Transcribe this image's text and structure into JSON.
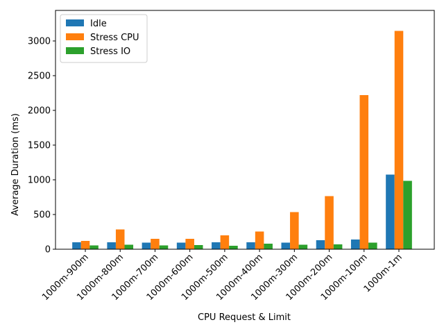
{
  "chart_data": {
    "type": "bar",
    "title": "",
    "xlabel": "CPU Request & Limit",
    "ylabel": "Average Duration (ms)",
    "ylim": [
      0,
      3440
    ],
    "yticks": [
      0,
      500,
      1000,
      1500,
      2000,
      2500,
      3000
    ],
    "grid": false,
    "legend_position": "top-left",
    "categories": [
      "1000m-900m",
      "1000m-800m",
      "1000m-700m",
      "1000m-600m",
      "1000m-500m",
      "1000m-400m",
      "1000m-300m",
      "1000m-200m",
      "1000m-100m",
      "1000m-1m"
    ],
    "series": [
      {
        "name": "Idle",
        "color": "#1f77b4",
        "values": [
          100,
          100,
          95,
          95,
          100,
          100,
          95,
          130,
          140,
          1075
        ]
      },
      {
        "name": "Stress CPU",
        "color": "#ff7f0e",
        "values": [
          120,
          285,
          150,
          150,
          200,
          255,
          535,
          765,
          2220,
          3145
        ]
      },
      {
        "name": "Stress IO",
        "color": "#2ca02c",
        "values": [
          55,
          65,
          55,
          60,
          50,
          80,
          65,
          70,
          95,
          985
        ]
      }
    ]
  }
}
